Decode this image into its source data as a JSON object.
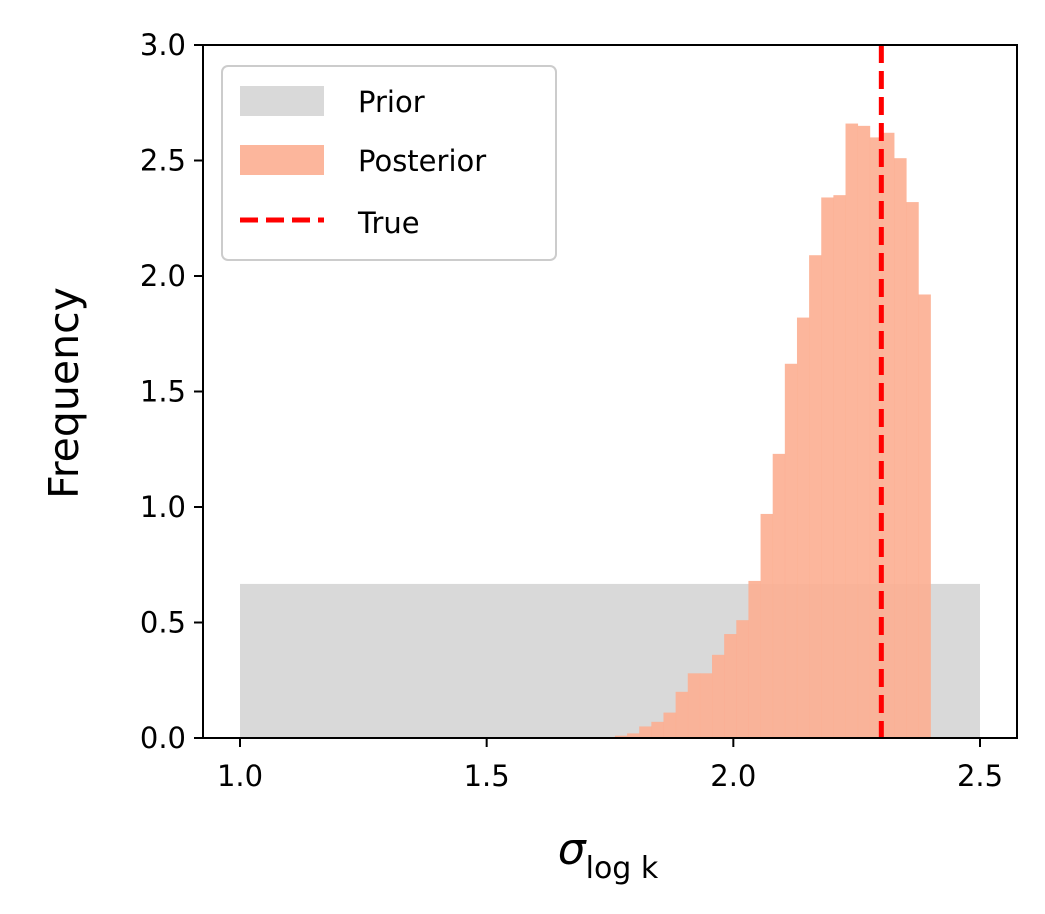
{
  "chart_data": {
    "type": "histogram",
    "title": "",
    "xlabel": "σ",
    "xlabel_subscript": "log k",
    "ylabel": "Frequency",
    "xlim": [
      0.925,
      2.575
    ],
    "ylim": [
      0,
      3.0
    ],
    "xticks": [
      1.0,
      1.5,
      2.0,
      2.5
    ],
    "xtick_labels": [
      "1.0",
      "1.5",
      "2.0",
      "2.5"
    ],
    "yticks": [
      0.0,
      0.5,
      1.0,
      1.5,
      2.0,
      2.5,
      3.0
    ],
    "ytick_labels": [
      "0.0",
      "0.5",
      "1.0",
      "1.5",
      "2.0",
      "2.5",
      "3.0"
    ],
    "grid": false,
    "legend_position": "top-left",
    "series": [
      {
        "name": "Prior",
        "kind": "histogram",
        "color": "#d9d9d9",
        "bins": [
          {
            "x0": 1.0,
            "x1": 2.5,
            "value": 0.667
          }
        ]
      },
      {
        "name": "Posterior",
        "kind": "histogram",
        "color": "#fcae91",
        "opacity": 0.9,
        "bin_start": 1.76,
        "bin_width": 0.0246,
        "values": [
          0.01,
          0.02,
          0.05,
          0.07,
          0.11,
          0.2,
          0.28,
          0.28,
          0.36,
          0.45,
          0.51,
          0.68,
          0.97,
          1.23,
          1.62,
          1.82,
          2.09,
          2.34,
          2.35,
          2.66,
          2.65,
          2.6,
          2.62,
          2.51,
          2.32,
          1.92
        ]
      },
      {
        "name": "True",
        "kind": "vline",
        "color": "#ff0000",
        "linestyle": "dashed",
        "x": 2.3
      }
    ]
  }
}
